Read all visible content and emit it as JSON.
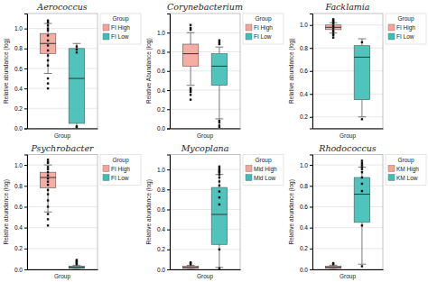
{
  "chart_data": [
    {
      "type": "box",
      "title": "Aerococcus",
      "x_label": "Group",
      "y_label": "Relative abundance (log)",
      "legend_title": "Group",
      "legend": "right",
      "grid": true,
      "ylim": [
        0.0,
        1.15
      ],
      "yticks": [
        {
          "value": 0.0,
          "label": "0.0"
        },
        0.2,
        0.4,
        0.6,
        0.8,
        {
          "value": 1.0,
          "label": "1.0"
        }
      ],
      "series": [
        {
          "name": "FI High",
          "color": "#F4A59A",
          "median": 0.85,
          "q1": 0.75,
          "q3": 0.95,
          "whislo": 0.55,
          "whishi": 1.05,
          "fliers": [
            1.08,
            1.06,
            1.03,
            1.0,
            0.98,
            0.93,
            0.88,
            0.83,
            0.78,
            0.73,
            0.68,
            0.63,
            0.5,
            0.45,
            0.4
          ]
        },
        {
          "name": "FI Low",
          "color": "#3DBDB5",
          "median": 0.5,
          "q1": 0.05,
          "q3": 0.8,
          "whislo": 0.0,
          "whishi": 0.85,
          "fliers": [
            0.82,
            0.79,
            0.76,
            0.02,
            0.01
          ]
        }
      ]
    },
    {
      "type": "box",
      "title": "Corynebacterium",
      "x_label": "Group",
      "y_label": "Relative Abundance (log)",
      "legend_title": "Group",
      "legend": "right",
      "grid": true,
      "ylim": [
        0.0,
        1.2
      ],
      "yticks": [
        {
          "value": 0.0,
          "label": "0.0"
        },
        0.2,
        0.4,
        0.6,
        0.8,
        {
          "value": 1.0,
          "label": "1.0"
        }
      ],
      "series": [
        {
          "name": "FI High",
          "color": "#F4A59A",
          "median": 0.78,
          "q1": 0.65,
          "q3": 0.88,
          "whislo": 0.45,
          "whishi": 1.0,
          "fliers": [
            1.03,
            1.05,
            1.08,
            0.42,
            0.4,
            0.38,
            0.35,
            0.3
          ]
        },
        {
          "name": "FI Low",
          "color": "#3DBDB5",
          "median": 0.65,
          "q1": 0.45,
          "q3": 0.78,
          "whislo": 0.1,
          "whishi": 0.85,
          "fliers": [
            0.88,
            0.9,
            0.92,
            0.08,
            0.06,
            0.03,
            0.01
          ]
        }
      ]
    },
    {
      "type": "box",
      "title": "Facklamia",
      "x_label": "Group",
      "y_label": "Relative abundance (log)",
      "legend_title": "Group",
      "legend": "right",
      "grid": true,
      "ylim": [
        0.1,
        1.1
      ],
      "yticks": [
        0.2,
        0.4,
        0.6,
        0.8,
        {
          "value": 1.0,
          "label": "1.0"
        }
      ],
      "series": [
        {
          "name": "FI High",
          "color": "#F4A59A",
          "median": 0.98,
          "q1": 0.96,
          "q3": 1.0,
          "whislo": 0.93,
          "whishi": 1.02,
          "fliers": [
            1.03,
            1.04,
            1.05,
            1.02,
            1.01,
            0.99,
            0.97,
            0.95,
            0.94,
            0.92,
            0.91,
            0.89
          ]
        },
        {
          "name": "FI Low",
          "color": "#3DBDB5",
          "median": 0.72,
          "q1": 0.35,
          "q3": 0.82,
          "whislo": 0.2,
          "whishi": 0.88,
          "fliers": [
            0.85,
            0.18
          ]
        }
      ]
    },
    {
      "type": "box",
      "title": "Psychrobacter",
      "x_label": "Group",
      "y_label": "Relative abundance (log)",
      "legend_title": "Group",
      "legend": "right",
      "grid": true,
      "ylim": [
        0.0,
        1.1
      ],
      "yticks": [
        {
          "value": 0.0,
          "label": "0.0"
        },
        0.2,
        0.4,
        0.6,
        0.8,
        {
          "value": 1.0,
          "label": "1.0"
        }
      ],
      "series": [
        {
          "name": "FI High",
          "color": "#F4A59A",
          "median": 0.88,
          "q1": 0.78,
          "q3": 0.93,
          "whislo": 0.55,
          "whishi": 1.0,
          "fliers": [
            1.02,
            1.03,
            1.05,
            0.98,
            0.96,
            0.93,
            0.9,
            0.87,
            0.84,
            0.81,
            0.76,
            0.72,
            0.66,
            0.6,
            0.53,
            0.48,
            0.42
          ]
        },
        {
          "name": "FI Low",
          "color": "#3DBDB5",
          "median": 0.02,
          "q1": 0.01,
          "q3": 0.03,
          "whislo": 0.0,
          "whishi": 0.04,
          "fliers": [
            0.05,
            0.06,
            0.07,
            0.08,
            0.09
          ]
        }
      ]
    },
    {
      "type": "box",
      "title": "Mycoplana",
      "x_label": "Group",
      "y_label": "Relative abundance (log)",
      "legend_title": "Group",
      "legend": "right",
      "grid": true,
      "ylim": [
        0.0,
        1.15
      ],
      "yticks": [
        {
          "value": 0.0,
          "label": "0.0"
        },
        0.2,
        0.4,
        0.6,
        0.8,
        {
          "value": 1.0,
          "label": "1.0"
        }
      ],
      "series": [
        {
          "name": "Mid High",
          "color": "#F4A59A",
          "median": 0.02,
          "q1": 0.01,
          "q3": 0.03,
          "whislo": 0.0,
          "whishi": 0.04,
          "fliers": [
            0.05,
            0.06,
            0.07
          ]
        },
        {
          "name": "Mid Low",
          "color": "#3DBDB5",
          "median": 0.55,
          "q1": 0.25,
          "q3": 0.82,
          "whislo": 0.02,
          "whishi": 0.95,
          "fliers": [
            0.97,
            0.99,
            1.01,
            1.03,
            0.98,
            0.95,
            0.92,
            0.88,
            0.84,
            0.78,
            0.72,
            0.65,
            0.2,
            0.01
          ]
        }
      ]
    },
    {
      "type": "box",
      "title": "Rhodococcus",
      "x_label": "Group",
      "y_label": "Relative abundance (log)",
      "legend_title": "Group",
      "legend": "right",
      "grid": true,
      "ylim": [
        0.0,
        1.1
      ],
      "yticks": [
        {
          "value": 0.0,
          "label": "0.0"
        },
        0.2,
        0.4,
        0.6,
        0.8,
        {
          "value": 1.0,
          "label": "1.0"
        }
      ],
      "series": [
        {
          "name": "KM High",
          "color": "#F4A59A",
          "median": 0.02,
          "q1": 0.01,
          "q3": 0.03,
          "whislo": 0.0,
          "whishi": 0.04,
          "fliers": [
            0.05,
            0.06
          ]
        },
        {
          "name": "KM Low",
          "color": "#3DBDB5",
          "median": 0.72,
          "q1": 0.45,
          "q3": 0.88,
          "whislo": 0.05,
          "whishi": 0.98,
          "fliers": [
            1.0,
            1.02,
            1.04,
            0.98,
            0.96,
            0.93,
            0.88,
            0.82,
            0.75,
            0.42,
            0.03
          ]
        }
      ]
    }
  ]
}
